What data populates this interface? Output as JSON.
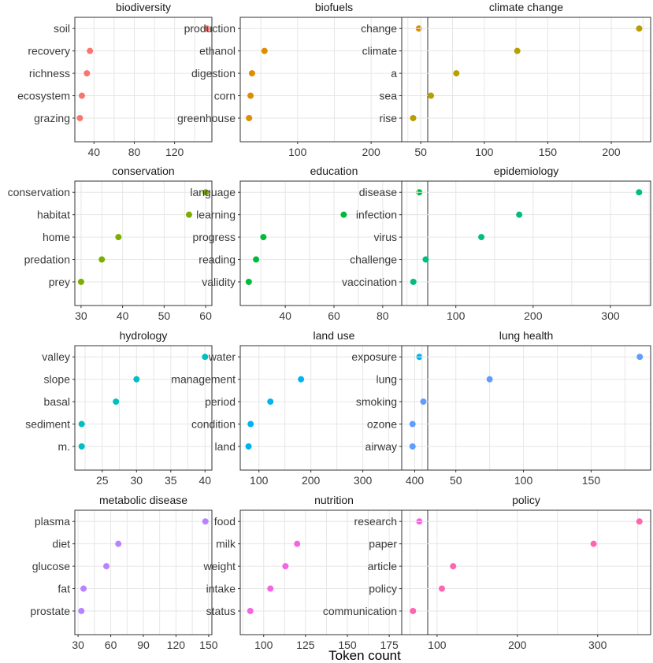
{
  "chart_data": {
    "type": "scatter",
    "xlabel": "Token count",
    "facets": [
      {
        "title": "biodiversity",
        "color": "#F8766D",
        "terms": [
          "soil",
          "recovery",
          "richness",
          "ecosystem",
          "grazing"
        ],
        "values": [
          152,
          36,
          33,
          28,
          26
        ],
        "xlim": [
          21,
          157
        ],
        "xticks": [
          40,
          80,
          120
        ]
      },
      {
        "title": "biofuels",
        "color": "#DE8C00",
        "terms": [
          "production",
          "ethanol",
          "digestion",
          "corn",
          "greenhouse"
        ],
        "values": [
          265,
          55,
          38,
          36,
          34
        ],
        "xlim": [
          22,
          277
        ],
        "xticks": [
          100,
          200
        ]
      },
      {
        "title": "climate change",
        "color": "#B79F00",
        "terms": [
          "change",
          "climate",
          "a",
          "sea",
          "rise"
        ],
        "values": [
          222,
          126,
          78,
          58,
          44
        ],
        "xlim": [
          35,
          231
        ],
        "xticks": [
          50,
          100,
          150,
          200
        ]
      },
      {
        "title": "conservation",
        "color": "#7CAE00",
        "terms": [
          "conservation",
          "habitat",
          "home",
          "predation",
          "prey"
        ],
        "values": [
          60,
          56,
          39,
          35,
          30
        ],
        "xlim": [
          28.5,
          61.5
        ],
        "xticks": [
          30,
          40,
          50,
          60
        ]
      },
      {
        "title": "education",
        "color": "#00BA38",
        "terms": [
          "language",
          "learning",
          "progress",
          "reading",
          "validity"
        ],
        "values": [
          95,
          64,
          31,
          28,
          25
        ],
        "xlim": [
          21.5,
          98.5
        ],
        "xticks": [
          40,
          60,
          80
        ]
      },
      {
        "title": "epidemiology",
        "color": "#00BF7D",
        "terms": [
          "disease",
          "infection",
          "virus",
          "challenge",
          "vaccination"
        ],
        "values": [
          337,
          182,
          133,
          61,
          45
        ],
        "xlim": [
          30,
          352
        ],
        "xticks": [
          100,
          200,
          300
        ]
      },
      {
        "title": "hydrology",
        "color": "#00BFC4",
        "terms": [
          "valley",
          "slope",
          "basal",
          "sediment",
          "m."
        ],
        "values": [
          40,
          30,
          27,
          22,
          22
        ],
        "xlim": [
          21,
          41
        ],
        "xticks": [
          25,
          30,
          35,
          40
        ]
      },
      {
        "title": "land use",
        "color": "#00B4F0",
        "terms": [
          "water",
          "management",
          "period",
          "condition",
          "land"
        ],
        "values": [
          409,
          181,
          122,
          84,
          80
        ],
        "xlim": [
          64,
          425
        ],
        "xticks": [
          100,
          200,
          300,
          400
        ]
      },
      {
        "title": "lung health",
        "color": "#619CFF",
        "terms": [
          "exposure",
          "lung",
          "smoking",
          "ozone",
          "airway"
        ],
        "values": [
          186,
          75,
          26,
          18,
          18
        ],
        "xlim": [
          10,
          194
        ],
        "xticks": [
          50,
          100,
          150
        ]
      },
      {
        "title": "metabolic disease",
        "color": "#B983FF",
        "terms": [
          "plasma",
          "diet",
          "glucose",
          "fat",
          "prostate"
        ],
        "values": [
          147,
          67,
          56,
          35,
          33
        ],
        "xlim": [
          27,
          153
        ],
        "xticks": [
          30,
          60,
          90,
          120,
          150
        ]
      },
      {
        "title": "nutrition",
        "color": "#F564E3",
        "terms": [
          "food",
          "milk",
          "weight",
          "intake",
          "status"
        ],
        "values": [
          193,
          120,
          113,
          104,
          92
        ],
        "xlim": [
          86,
          198
        ],
        "xticks": [
          100,
          125,
          150,
          175
        ]
      },
      {
        "title": "policy",
        "color": "#FF64B0",
        "terms": [
          "research",
          "paper",
          "article",
          "policy",
          "communication"
        ],
        "values": [
          352,
          295,
          120,
          106,
          70
        ],
        "xlim": [
          56,
          366
        ],
        "xticks": [
          100,
          200,
          300
        ]
      }
    ]
  }
}
